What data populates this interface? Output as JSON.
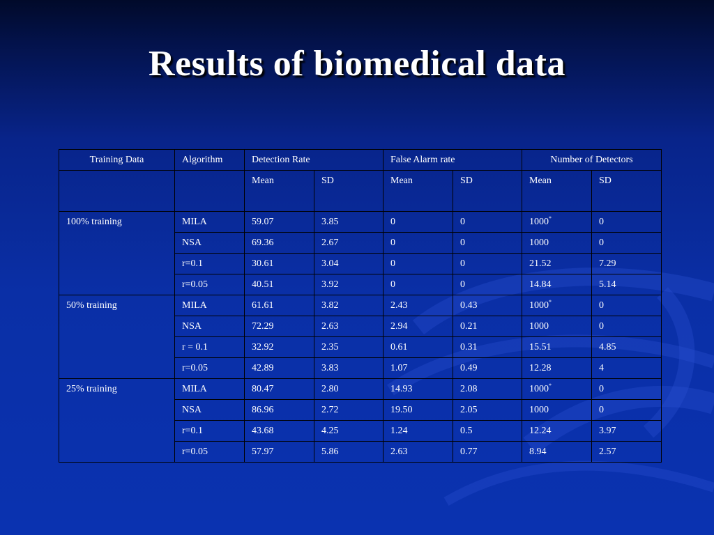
{
  "slide": {
    "title": "Results of biomedical data"
  },
  "table": {
    "header": {
      "training_data": "Training Data",
      "algorithm": "Algorithm",
      "detection_rate": "Detection Rate",
      "false_alarm_rate": "False Alarm rate",
      "number_of_detectors": "Number of Detectors"
    },
    "subheader": [
      "Mean",
      "SD",
      "Mean",
      "SD",
      "Mean",
      "SD"
    ],
    "groups": [
      {
        "training": "100% training",
        "rows": [
          {
            "algorithm": "MILA",
            "dr_mean": "59.07",
            "dr_sd": "3.85",
            "fa_mean": "0",
            "fa_sd": "0",
            "nd_mean": "1000",
            "nd_mark": "*",
            "nd_sd": "0"
          },
          {
            "algorithm": "NSA",
            "dr_mean": "69.36",
            "dr_sd": "2.67",
            "fa_mean": "0",
            "fa_sd": "0",
            "nd_mean": "1000",
            "nd_mark": "",
            "nd_sd": "0"
          },
          {
            "algorithm": "r=0.1",
            "dr_mean": "30.61",
            "dr_sd": "3.04",
            "fa_mean": "0",
            "fa_sd": "0",
            "nd_mean": "21.52",
            "nd_mark": "",
            "nd_sd": "7.29"
          },
          {
            "algorithm": "r=0.05",
            "dr_mean": "40.51",
            "dr_sd": "3.92",
            "fa_mean": "0",
            "fa_sd": "0",
            "nd_mean": "14.84",
            "nd_mark": "",
            "nd_sd": "5.14"
          }
        ]
      },
      {
        "training": "50% training",
        "rows": [
          {
            "algorithm": "MILA",
            "dr_mean": "61.61",
            "dr_sd": "3.82",
            "fa_mean": "2.43",
            "fa_sd": "0.43",
            "nd_mean": "1000",
            "nd_mark": "*",
            "nd_sd": "0"
          },
          {
            "algorithm": "NSA",
            "dr_mean": "72.29",
            "dr_sd": "2.63",
            "fa_mean": "2.94",
            "fa_sd": "0.21",
            "nd_mean": "1000",
            "nd_mark": "",
            "nd_sd": "0"
          },
          {
            "algorithm": "r = 0.1",
            "dr_mean": "32.92",
            "dr_sd": "2.35",
            "fa_mean": "0.61",
            "fa_sd": "0.31",
            "nd_mean": "15.51",
            "nd_mark": "",
            "nd_sd": "4.85"
          },
          {
            "algorithm": "r=0.05",
            "dr_mean": "42.89",
            "dr_sd": "3.83",
            "fa_mean": "1.07",
            "fa_sd": "0.49",
            "nd_mean": "12.28",
            "nd_mark": "",
            "nd_sd": "4"
          }
        ]
      },
      {
        "training": "25% training",
        "rows": [
          {
            "algorithm": "MILA",
            "dr_mean": "80.47",
            "dr_sd": "2.80",
            "fa_mean": "14.93",
            "fa_sd": "2.08",
            "nd_mean": "1000",
            "nd_mark": "*",
            "nd_sd": "0"
          },
          {
            "algorithm": "NSA",
            "dr_mean": "86.96",
            "dr_sd": "2.72",
            "fa_mean": "19.50",
            "fa_sd": "2.05",
            "nd_mean": "1000",
            "nd_mark": "",
            "nd_sd": "0"
          },
          {
            "algorithm": "r=0.1",
            "dr_mean": "43.68",
            "dr_sd": "4.25",
            "fa_mean": "1.24",
            "fa_sd": "0.5",
            "nd_mean": "12.24",
            "nd_mark": "",
            "nd_sd": "3.97"
          },
          {
            "algorithm": "r=0.05",
            "dr_mean": "57.97",
            "dr_sd": "5.86",
            "fa_mean": "2.63",
            "fa_sd": "0.77",
            "nd_mean": "8.94",
            "nd_mark": "",
            "nd_sd": "2.57"
          }
        ]
      }
    ]
  },
  "colors": {
    "background_top": "#010a2a",
    "background_bottom": "#0a32b0",
    "text": "#ffffff",
    "table_border": "#000000"
  }
}
